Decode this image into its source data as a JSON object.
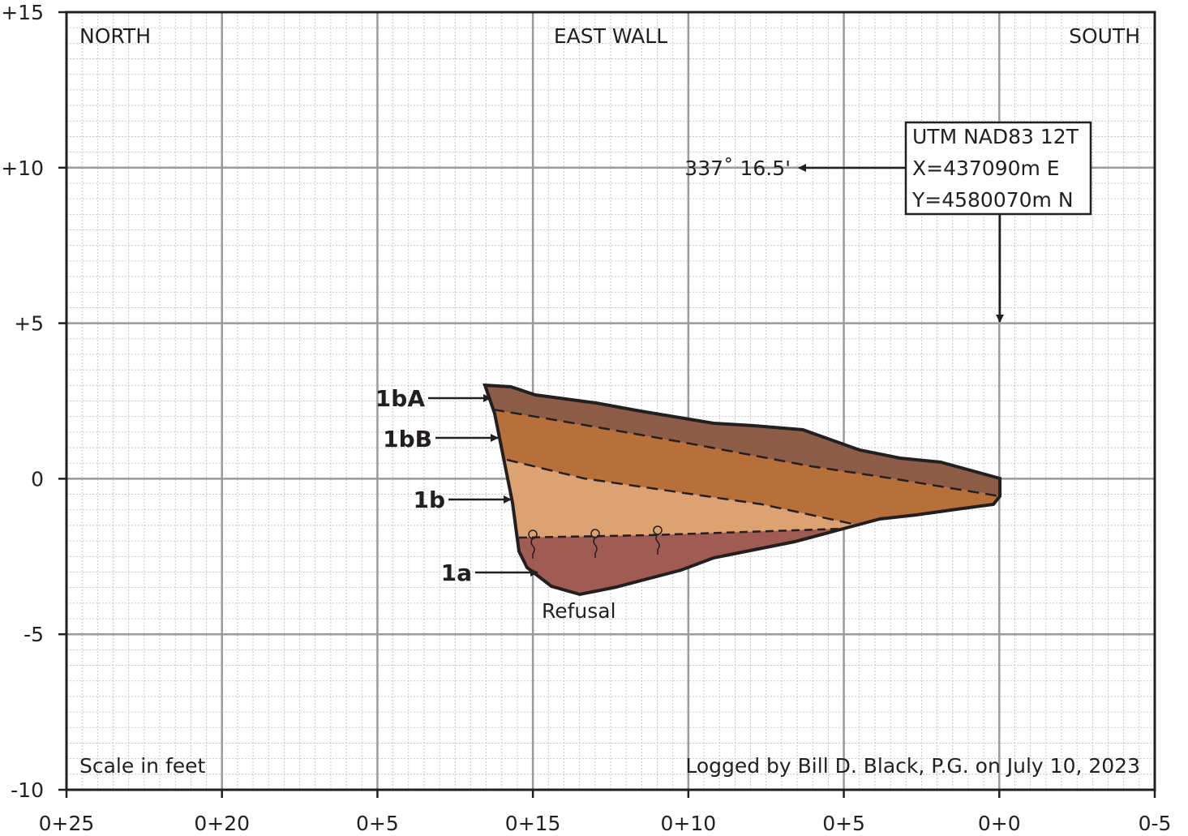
{
  "header": {
    "north": "NORTH",
    "title": "EAST WALL",
    "south": "SOUTH"
  },
  "location_box": {
    "lines": [
      "UTM NAD83 12T",
      "X=437090m E",
      "Y=4580070m N"
    ]
  },
  "bearing": "337˚ 16.5'",
  "units": [
    {
      "label": "1bA"
    },
    {
      "label": "1bB"
    },
    {
      "label": "1b"
    },
    {
      "label": "1a"
    }
  ],
  "refusal": "Refusal",
  "footer": {
    "scale": "Scale in feet",
    "logged_by": "Logged by Bill D. Black, P.G. on July 10, 2023"
  },
  "x_axis": {
    "labels": [
      "0+25",
      "0+20",
      "0+5",
      "0+15",
      "0+10",
      "0+5",
      "0+0",
      "0-5"
    ]
  },
  "y_axis": {
    "labels": [
      "+15",
      "+10",
      "+5",
      "0",
      "-5",
      "-10"
    ]
  }
}
